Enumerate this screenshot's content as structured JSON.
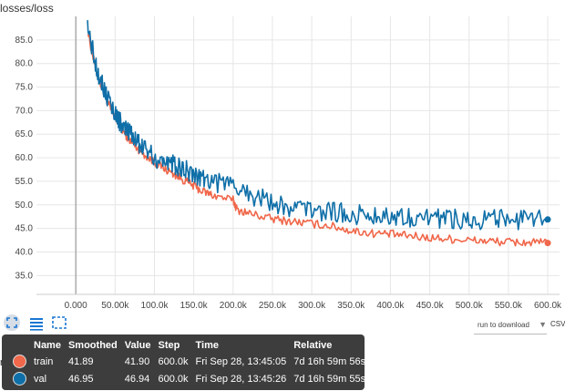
{
  "chart_title": "losses/loss",
  "chart_data": {
    "type": "line",
    "title": "losses/loss",
    "xlabel": "",
    "ylabel": "",
    "xlim": [
      -50000,
      615000
    ],
    "ylim": [
      31,
      90
    ],
    "x_tick_labels": [
      "0.000",
      "50.00k",
      "100.0k",
      "150.0k",
      "200.0k",
      "250.0k",
      "300.0k",
      "350.0k",
      "400.0k",
      "450.0k",
      "500.0k",
      "550.0k",
      "600.0k"
    ],
    "x_ticks": [
      0,
      50000,
      100000,
      150000,
      200000,
      250000,
      300000,
      350000,
      400000,
      450000,
      500000,
      550000,
      600000
    ],
    "y_tick_labels": [
      "35.0",
      "40.0",
      "45.0",
      "50.0",
      "55.0",
      "60.0",
      "65.0",
      "70.0",
      "75.0",
      "80.0",
      "85.0"
    ],
    "y_ticks": [
      35,
      40,
      45,
      50,
      55,
      60,
      65,
      70,
      75,
      80,
      85
    ],
    "grid": true,
    "series": [
      {
        "name": "train",
        "color": "#f0674a",
        "x": [
          15000,
          25000,
          35000,
          45000,
          55000,
          65000,
          75000,
          85000,
          100000,
          115000,
          130000,
          145000,
          160000,
          175000,
          200000,
          205000,
          225000,
          250000,
          275000,
          300000,
          325000,
          350000,
          375000,
          400000,
          425000,
          450000,
          475000,
          500000,
          525000,
          550000,
          575000,
          600000
        ],
        "values": [
          87,
          79,
          74,
          70,
          67,
          64.5,
          62.5,
          61,
          59,
          57.5,
          56,
          54.5,
          53,
          52,
          51,
          49,
          48,
          47,
          46.5,
          46,
          45.5,
          44.5,
          44,
          43.8,
          43.4,
          43,
          42.8,
          42.5,
          42.3,
          42.1,
          42,
          41.9
        ]
      },
      {
        "name": "val",
        "color": "#0f6fa8",
        "x": [
          15000,
          25000,
          35000,
          45000,
          55000,
          65000,
          75000,
          85000,
          100000,
          115000,
          130000,
          145000,
          160000,
          175000,
          200000,
          225000,
          250000,
          275000,
          300000,
          325000,
          350000,
          375000,
          400000,
          425000,
          450000,
          475000,
          500000,
          525000,
          550000,
          575000,
          600000
        ],
        "values": [
          88,
          80,
          75,
          71,
          68,
          65.5,
          64,
          62.5,
          60,
          59,
          58,
          57,
          56,
          55,
          54,
          52,
          50.5,
          49.5,
          49,
          48.5,
          48,
          47.8,
          47.7,
          47.5,
          47.3,
          47.2,
          47,
          46.9,
          46.8,
          46.7,
          46.9
        ]
      }
    ]
  },
  "toolbar": {
    "fit_icon": "fit-domain-icon",
    "lines_icon": "toggle-y-log-icon",
    "expand_icon": "expand-chart-icon"
  },
  "download": {
    "select_label": "run to download",
    "csv_label": "CSV"
  },
  "tooltip": {
    "headers": [
      "Name",
      "Smoothed",
      "Value",
      "Step",
      "Time",
      "Relative"
    ],
    "rows": [
      {
        "name": "train",
        "color": "#f0674a",
        "smoothed": "41.89",
        "value": "41.90",
        "step": "600.0k",
        "time": "Fri Sep 28, 13:45:05",
        "relative": "7d 16h 59m 56s"
      },
      {
        "name": "val",
        "color": "#0f6fa8",
        "smoothed": "46.95",
        "value": "46.94",
        "step": "600.0k",
        "time": "Fri Sep 28, 13:45:26",
        "relative": "7d 16h 59m 55s"
      }
    ]
  },
  "partial_label": "ne"
}
